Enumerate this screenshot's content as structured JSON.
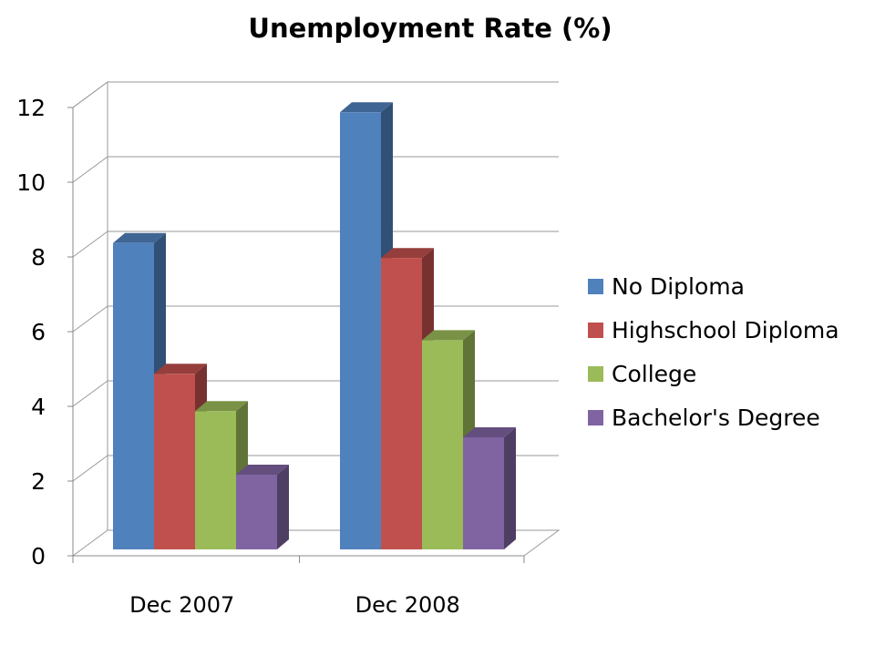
{
  "chart_data": {
    "type": "bar",
    "title": "Unemployment Rate (%)",
    "xlabel": "",
    "ylabel": "",
    "ylim": [
      0,
      12
    ],
    "yticks": [
      "0",
      "2",
      "4",
      "6",
      "8",
      "10",
      "12"
    ],
    "categories": [
      "Dec 2007",
      "Dec 2008"
    ],
    "series": [
      {
        "name": "No Diploma",
        "values": [
          8.2,
          11.7
        ],
        "color": "#4F81BD"
      },
      {
        "name": "Highschool Diploma",
        "values": [
          4.7,
          7.8
        ],
        "color": "#C0504D"
      },
      {
        "name": "College",
        "values": [
          3.7,
          5.6
        ],
        "color": "#9BBB59"
      },
      {
        "name": "Bachelor's Degree",
        "values": [
          2.0,
          3.0
        ],
        "color": "#8064A2"
      }
    ],
    "grid": true,
    "legend": "right",
    "style": "3d-clustered-column"
  }
}
